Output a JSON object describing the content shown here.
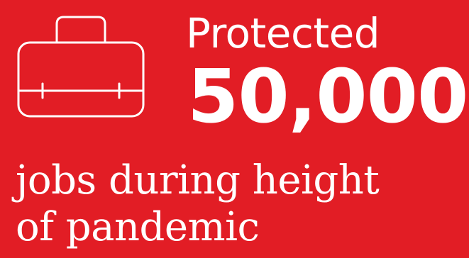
{
  "infographic": {
    "icon": "briefcase-icon",
    "label": "Protected",
    "value": "50,000",
    "caption_line1": "jobs during height",
    "caption_line2": "of pandemic"
  },
  "colors": {
    "background": "#e21d25",
    "foreground": "#ffffff"
  }
}
